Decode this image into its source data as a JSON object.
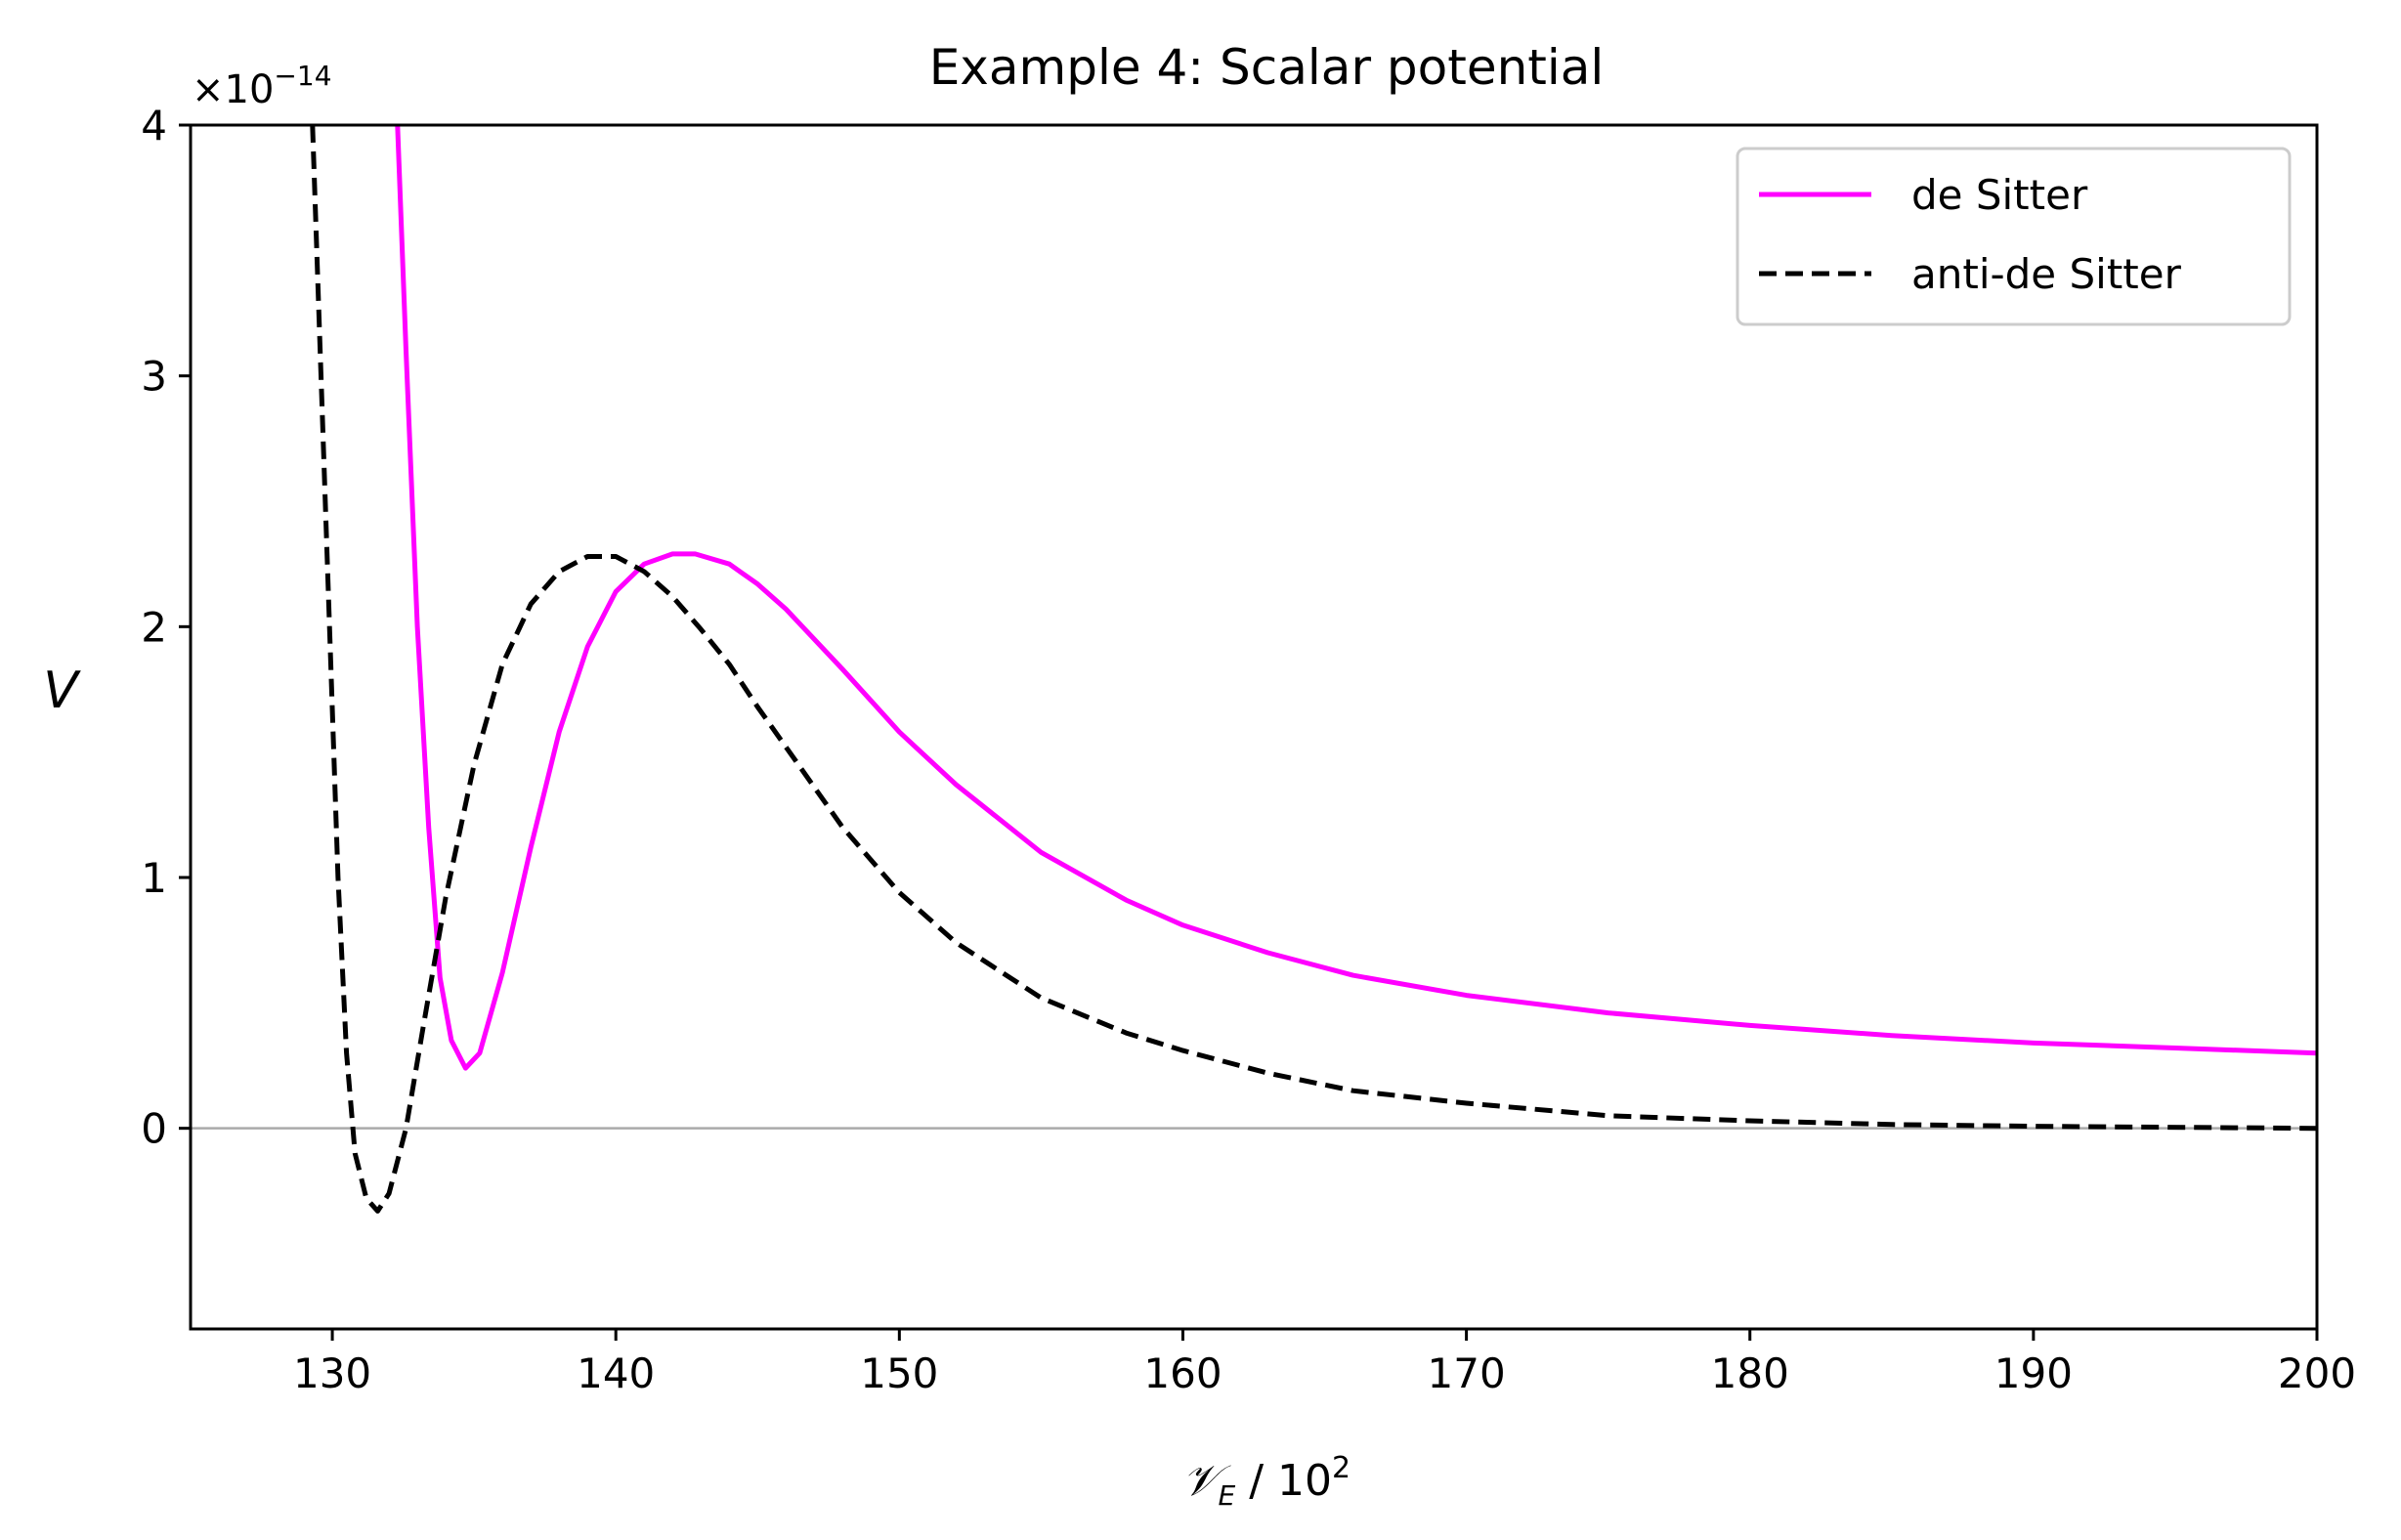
{
  "chart_data": {
    "type": "line",
    "title": "Example 4: Scalar potential",
    "xlabel_main": "𝒱",
    "xlabel_sub": "E",
    "xlabel_rest": " / 10",
    "xlabel_sup": "2",
    "ylabel": "V",
    "y_offset_base": "×10",
    "y_offset_exp": "−14",
    "xlim": [
      125,
      200
    ],
    "ylim": [
      -0.8,
      4
    ],
    "x_ticks": [
      130,
      140,
      150,
      160,
      170,
      180,
      190,
      200
    ],
    "x_tick_labels": [
      "130",
      "140",
      "150",
      "160",
      "170",
      "180",
      "190",
      "200"
    ],
    "y_ticks": [
      0,
      1,
      2,
      3,
      4
    ],
    "y_tick_labels": [
      "0",
      "1",
      "2",
      "3",
      "4"
    ],
    "hline": 0,
    "legend": {
      "position": "top-right"
    },
    "series": [
      {
        "name": "de Sitter",
        "color": "#ff00ff",
        "dash": "solid",
        "points": [
          [
            132.3,
            4.0
          ],
          [
            132.6,
            3.1
          ],
          [
            133.0,
            2.0
          ],
          [
            133.4,
            1.2
          ],
          [
            133.8,
            0.6
          ],
          [
            134.2,
            0.35
          ],
          [
            134.7,
            0.24
          ],
          [
            135.2,
            0.3
          ],
          [
            136.0,
            0.62
          ],
          [
            137.0,
            1.12
          ],
          [
            138.0,
            1.58
          ],
          [
            139.0,
            1.92
          ],
          [
            140.0,
            2.14
          ],
          [
            141.0,
            2.25
          ],
          [
            142.0,
            2.29
          ],
          [
            142.8,
            2.29
          ],
          [
            144.0,
            2.25
          ],
          [
            145.0,
            2.17
          ],
          [
            146.0,
            2.07
          ],
          [
            148.0,
            1.83
          ],
          [
            150.0,
            1.58
          ],
          [
            152.0,
            1.37
          ],
          [
            155.0,
            1.1
          ],
          [
            158.0,
            0.91
          ],
          [
            160.0,
            0.81
          ],
          [
            163.0,
            0.7
          ],
          [
            166.0,
            0.61
          ],
          [
            170.0,
            0.53
          ],
          [
            175.0,
            0.46
          ],
          [
            180.0,
            0.41
          ],
          [
            185.0,
            0.37
          ],
          [
            190.0,
            0.34
          ],
          [
            195.0,
            0.32
          ],
          [
            200.0,
            0.3
          ]
        ]
      },
      {
        "name": "anti-de Sitter",
        "color": "#000000",
        "dash": "dashed",
        "points": [
          [
            129.3,
            4.0
          ],
          [
            129.6,
            3.0
          ],
          [
            129.9,
            2.0
          ],
          [
            130.2,
            1.0
          ],
          [
            130.5,
            0.3
          ],
          [
            130.8,
            -0.1
          ],
          [
            131.2,
            -0.28
          ],
          [
            131.6,
            -0.33
          ],
          [
            132.0,
            -0.26
          ],
          [
            132.6,
            0.0
          ],
          [
            133.2,
            0.4
          ],
          [
            134.0,
            0.92
          ],
          [
            135.0,
            1.45
          ],
          [
            136.0,
            1.85
          ],
          [
            137.0,
            2.09
          ],
          [
            138.0,
            2.22
          ],
          [
            139.0,
            2.28
          ],
          [
            140.0,
            2.28
          ],
          [
            141.0,
            2.22
          ],
          [
            142.0,
            2.12
          ],
          [
            143.0,
            1.99
          ],
          [
            144.0,
            1.85
          ],
          [
            145.0,
            1.68
          ],
          [
            146.0,
            1.52
          ],
          [
            148.0,
            1.2
          ],
          [
            150.0,
            0.94
          ],
          [
            152.0,
            0.74
          ],
          [
            155.0,
            0.52
          ],
          [
            158.0,
            0.38
          ],
          [
            160.0,
            0.31
          ],
          [
            163.0,
            0.22
          ],
          [
            166.0,
            0.15
          ],
          [
            170.0,
            0.1
          ],
          [
            175.0,
            0.05
          ],
          [
            180.0,
            0.03
          ],
          [
            185.0,
            0.015
          ],
          [
            190.0,
            0.008
          ],
          [
            200.0,
            0.0
          ]
        ]
      }
    ]
  }
}
